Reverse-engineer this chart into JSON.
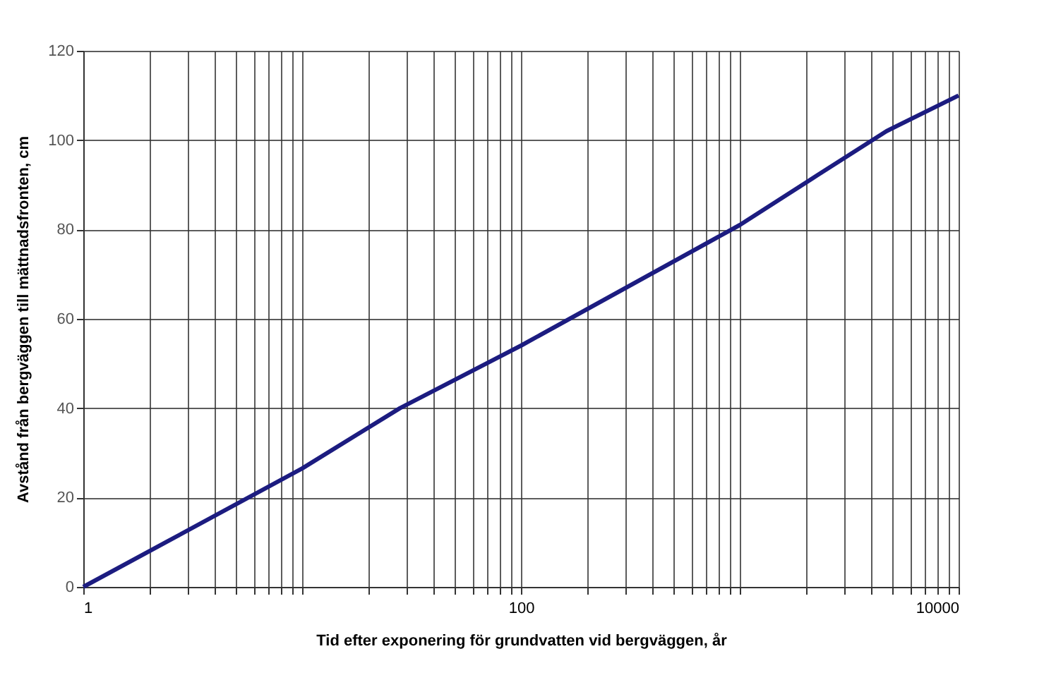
{
  "chart_data": {
    "type": "line",
    "xlabel": "Tid efter exponering för grundvatten vid bergväggen, år",
    "ylabel": "Avstånd från bergväggen till mättnadsfronten, cm",
    "log": "x",
    "grid": true,
    "marker": "none",
    "line_style": "solid",
    "xlim": [
      1,
      10000
    ],
    "ylim": [
      0,
      120
    ],
    "xticks": [
      1,
      {
        "value": 2,
        "label": null
      },
      {
        "value": 3,
        "label": null
      },
      {
        "value": 4,
        "label": null
      },
      {
        "value": 5,
        "label": null
      },
      {
        "value": 6,
        "label": null
      },
      {
        "value": 7,
        "label": null
      },
      {
        "value": 8,
        "label": null
      },
      {
        "value": 9,
        "label": null
      },
      {
        "value": 10,
        "label": null
      },
      {
        "value": 20,
        "label": null
      },
      {
        "value": 30,
        "label": null
      },
      {
        "value": 40,
        "label": null
      },
      {
        "value": 50,
        "label": null
      },
      {
        "value": 60,
        "label": null
      },
      {
        "value": 70,
        "label": null
      },
      {
        "value": 80,
        "label": null
      },
      {
        "value": 90,
        "label": null
      },
      100,
      {
        "value": 200,
        "label": null
      },
      {
        "value": 300,
        "label": null
      },
      {
        "value": 400,
        "label": null
      },
      {
        "value": 500,
        "label": null
      },
      {
        "value": 600,
        "label": null
      },
      {
        "value": 700,
        "label": null
      },
      {
        "value": 800,
        "label": null
      },
      {
        "value": 900,
        "label": null
      },
      {
        "value": 1000,
        "label": null
      },
      {
        "value": 2000,
        "label": null
      },
      {
        "value": 3000,
        "label": null
      },
      {
        "value": 4000,
        "label": null
      },
      {
        "value": 5000,
        "label": null
      },
      {
        "value": 6000,
        "label": null
      },
      {
        "value": 7000,
        "label": null
      },
      {
        "value": 8000,
        "label": null
      },
      {
        "value": 9000,
        "label": null
      },
      10000
    ],
    "yticks": [
      0,
      20,
      40,
      60,
      80,
      100,
      120
    ],
    "x": [
      1,
      10,
      28,
      100,
      1000,
      2240,
      4680,
      10000
    ],
    "series": [
      {
        "color": "#1c1c80",
        "values": [
          0,
          26.5,
          40,
          54,
          81,
          92,
          102,
          110
        ]
      }
    ]
  }
}
